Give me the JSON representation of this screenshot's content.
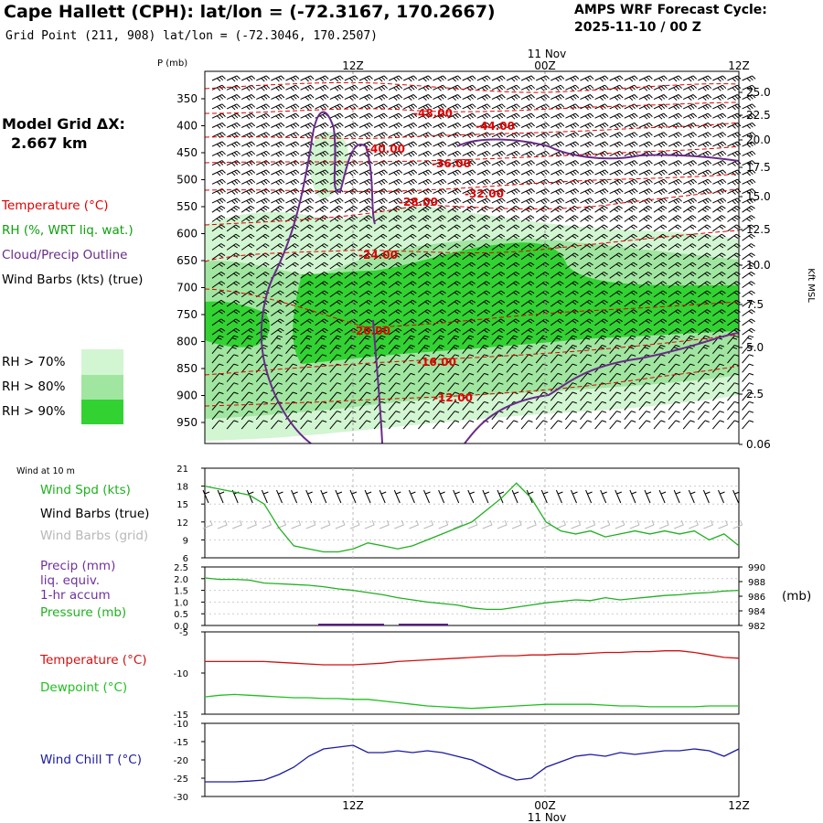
{
  "header": {
    "title": "Cape Hallett (CPH):  lat/lon = (-72.3167, 170.2667)",
    "subtitle": "Grid Point (211, 908) lat/lon = (-72.3046, 170.2507)",
    "cycle_line1": "AMPS WRF Forecast Cycle:",
    "cycle_line2": "2025-11-10 / 00  Z"
  },
  "legend": {
    "model_grid": "Model Grid ΔX:",
    "model_grid_value": "2.667 km",
    "temperature": "Temperature (°C)",
    "rh": "RH (%, WRT liq. wat.)",
    "cloud": "Cloud/Precip Outline",
    "wind_barbs": "Wind Barbs (kts) (true)",
    "rh70": "RH > 70%",
    "rh80": "RH > 80%",
    "rh90": "RH > 90%"
  },
  "colors": {
    "rh70": "#d2f5d2",
    "rh80": "#a0e6a0",
    "rh90": "#32d232",
    "temperature": "#e00000",
    "cloud": "#6a2a8a",
    "green": "#20b020",
    "gray": "#b8b8b8",
    "wind_chill": "#1a1aa0",
    "dewpoint": "#20c020"
  },
  "time_axis": {
    "top_labels": [
      "12Z",
      "00Z",
      "12Z"
    ],
    "date_label": "11 Nov",
    "bottom_labels": [
      "12Z",
      "00Z",
      "12Z"
    ]
  },
  "chart_data": [
    {
      "type": "heatmap",
      "title": "Time-height cross section",
      "ylabel": "P (mb)",
      "y2label": "Kft MSL",
      "pressure_ticks": [
        "350",
        "400",
        "450",
        "500",
        "550",
        "600",
        "650",
        "700",
        "750",
        "800",
        "850",
        "900",
        "950"
      ],
      "height_ticks": [
        "25.0",
        "22.5",
        "20.0",
        "17.5",
        "15.0",
        "12.5",
        "10.0",
        "7.5",
        "5.0",
        "2.5",
        "0.06"
      ],
      "temperature_contour_labels": [
        "-48.00",
        "-44.00",
        "-40.00",
        "-36.00",
        "-32.00",
        "-28.00",
        "-24.00",
        "-20.00",
        "-16.00",
        "-12.00"
      ]
    },
    {
      "type": "line",
      "title": "Wind at 10 m",
      "series_labels": [
        "Wind Spd (kts)",
        "Wind Barbs (true)",
        "Wind Barbs (grid)"
      ],
      "yticks": [
        "21",
        "18",
        "15",
        "12",
        "9",
        "6"
      ],
      "ylim": [
        6,
        21
      ],
      "series": [
        {
          "name": "Wind Spd (kts)",
          "values": [
            18,
            17.5,
            17,
            16.5,
            15,
            11,
            8,
            7.5,
            7,
            7,
            7.5,
            8.5,
            8,
            7.5,
            8,
            9,
            10,
            11,
            12,
            14,
            16,
            18.5,
            16,
            12,
            10.5,
            10,
            10.5,
            9.5,
            10,
            10.5,
            10,
            10.5,
            10,
            10.5,
            9,
            10,
            8
          ]
        }
      ]
    },
    {
      "type": "line",
      "title": "Precip / Pressure",
      "series_labels": [
        "Precip (mm)",
        "liq. equiv.",
        "1-hr accum",
        "Pressure (mb)"
      ],
      "right_unit": "(mb)",
      "yticks_left": [
        "2.5",
        "2.0",
        "1.5",
        "1.0",
        "0.5",
        "0.0"
      ],
      "yticks_right": [
        "990",
        "988",
        "986",
        "984",
        "982"
      ],
      "ylim_left": [
        0,
        2.5
      ],
      "ylim_right": [
        982,
        990
      ],
      "series": [
        {
          "name": "Pressure (mb)",
          "values": [
            988.5,
            988.3,
            988.3,
            988.2,
            987.8,
            987.7,
            987.6,
            987.5,
            987.3,
            987,
            986.8,
            986.5,
            986.2,
            985.8,
            985.5,
            985.2,
            985,
            984.8,
            984.4,
            984.2,
            984.2,
            984.5,
            984.8,
            985.1,
            985.3,
            985.5,
            985.4,
            985.8,
            985.5,
            985.7,
            985.9,
            986.1,
            986.2,
            986.4,
            986.5,
            986.7,
            986.8
          ]
        },
        {
          "name": "Precip (mm)",
          "values": [
            0,
            0,
            0,
            0,
            0,
            0,
            0,
            0,
            0,
            0,
            0,
            0,
            0,
            0,
            0,
            0,
            0,
            0,
            0,
            0,
            0,
            0,
            0,
            0,
            0,
            0,
            0,
            0,
            0,
            0,
            0,
            0,
            0,
            0,
            0,
            0,
            0
          ]
        }
      ]
    },
    {
      "type": "line",
      "title": "Temperature / Dewpoint",
      "series_labels": [
        "Temperature (°C)",
        "Dewpoint (°C)"
      ],
      "yticks": [
        "-5",
        "-10",
        "-15"
      ],
      "ylim": [
        -15,
        -5
      ],
      "series": [
        {
          "name": "Temperature (°C)",
          "values": [
            -8.6,
            -8.6,
            -8.6,
            -8.6,
            -8.6,
            -8.7,
            -8.8,
            -8.9,
            -9,
            -9,
            -9,
            -8.9,
            -8.8,
            -8.6,
            -8.5,
            -8.4,
            -8.3,
            -8.2,
            -8.1,
            -8,
            -7.9,
            -7.9,
            -7.8,
            -7.8,
            -7.7,
            -7.7,
            -7.6,
            -7.5,
            -7.5,
            -7.4,
            -7.4,
            -7.3,
            -7.3,
            -7.5,
            -7.8,
            -8.1,
            -8.2
          ]
        },
        {
          "name": "Dewpoint (°C)",
          "values": [
            -12.9,
            -12.7,
            -12.6,
            -12.7,
            -12.8,
            -12.9,
            -13,
            -13,
            -13.1,
            -13.1,
            -13.2,
            -13.2,
            -13.4,
            -13.6,
            -13.8,
            -14,
            -14.1,
            -14.2,
            -14.3,
            -14.2,
            -14.1,
            -14,
            -13.9,
            -13.8,
            -13.8,
            -13.8,
            -13.8,
            -13.9,
            -14,
            -14,
            -14.1,
            -14.1,
            -14.1,
            -14.1,
            -14,
            -14,
            -14
          ]
        }
      ]
    },
    {
      "type": "line",
      "title": "Wind Chill",
      "series_labels": [
        "Wind Chill T (°C)"
      ],
      "yticks": [
        "-10",
        "-15",
        "-20",
        "-25",
        "-30"
      ],
      "ylim": [
        -30,
        -10
      ],
      "series": [
        {
          "name": "Wind Chill T (°C)",
          "values": [
            -26,
            -26,
            -26,
            -25.8,
            -25.5,
            -24,
            -22,
            -19,
            -17,
            -16.5,
            -16,
            -18,
            -18,
            -17.5,
            -18,
            -17.5,
            -18,
            -19,
            -20,
            -22,
            -24,
            -25.5,
            -25,
            -22,
            -20.5,
            -19,
            -18.5,
            -19,
            -18,
            -18.5,
            -18,
            -17.5,
            -17.5,
            -17,
            -17.5,
            -19,
            -17
          ]
        }
      ]
    }
  ]
}
